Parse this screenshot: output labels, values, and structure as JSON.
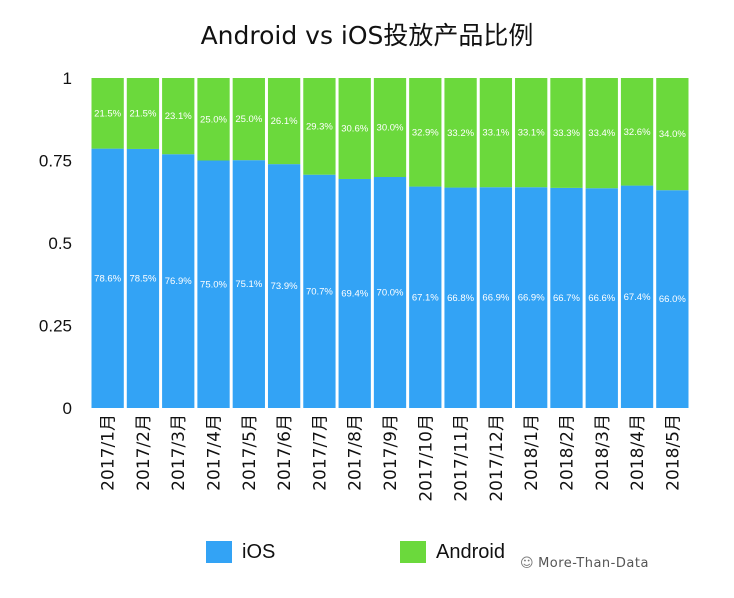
{
  "chart_data": {
    "type": "bar",
    "stacked": true,
    "title": "Android vs iOS投放产品比例",
    "xlabel": "",
    "ylabel": "",
    "ylim": [
      0,
      1
    ],
    "yticks": [
      "0",
      "0.25",
      "0.5",
      "0.75",
      "1"
    ],
    "categories": [
      "2017/1月",
      "2017/2月",
      "2017/3月",
      "2017/4月",
      "2017/5月",
      "2017/6月",
      "2017/7月",
      "2017/8月",
      "2017/9月",
      "2017/10月",
      "2017/11月",
      "2017/12月",
      "2018/1月",
      "2018/2月",
      "2018/3月",
      "2018/4月",
      "2018/5月"
    ],
    "series": [
      {
        "name": "iOS",
        "color": "#33a3f5",
        "values": [
          0.786,
          0.785,
          0.769,
          0.75,
          0.751,
          0.739,
          0.707,
          0.694,
          0.7,
          0.671,
          0.668,
          0.669,
          0.669,
          0.667,
          0.666,
          0.674,
          0.66
        ],
        "labels": [
          "78.6%",
          "78.5%",
          "76.9%",
          "75.0%",
          "75.1%",
          "73.9%",
          "70.7%",
          "69.4%",
          "70.0%",
          "67.1%",
          "66.8%",
          "66.9%",
          "66.9%",
          "66.7%",
          "66.6%",
          "67.4%",
          "66.0%"
        ]
      },
      {
        "name": "Android",
        "color": "#6bd93c",
        "values": [
          0.215,
          0.215,
          0.231,
          0.25,
          0.25,
          0.261,
          0.293,
          0.306,
          0.3,
          0.329,
          0.332,
          0.331,
          0.331,
          0.333,
          0.334,
          0.326,
          0.34
        ],
        "labels": [
          "21.5%",
          "21.5%",
          "23.1%",
          "25.0%",
          "25.0%",
          "26.1%",
          "29.3%",
          "30.6%",
          "30.0%",
          "32.9%",
          "33.2%",
          "33.1%",
          "33.1%",
          "33.3%",
          "33.4%",
          "32.6%",
          "34.0%"
        ]
      }
    ],
    "legend_position": "bottom",
    "grid": false
  },
  "watermark": {
    "text": "More-Than-Data",
    "icon": "wechat-icon"
  }
}
